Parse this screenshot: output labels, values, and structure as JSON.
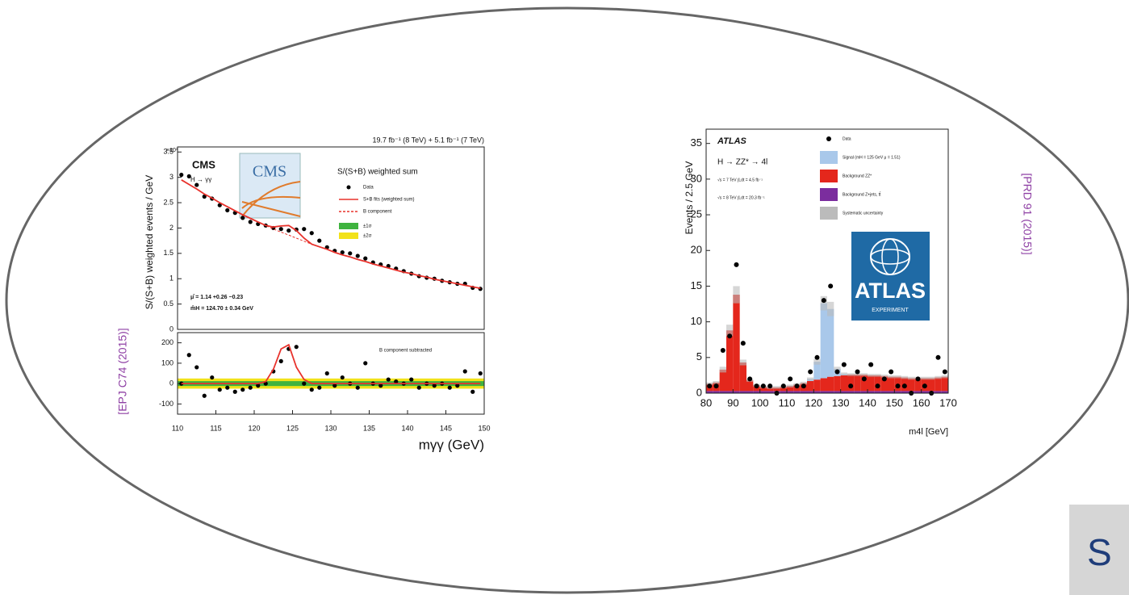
{
  "chart_data": [
    {
      "type": "line",
      "source": "[EPJ C74 (2015)]",
      "title": "19.7 fb⁻¹ (8 TeV) + 5.1 fb⁻¹ (7 TeV)",
      "experiment": "CMS",
      "process": "H → γγ",
      "logo": "CMS",
      "legend_title": "S/(S+B) weighted sum",
      "y_multiplier": "×10³",
      "ylabel": "S/(S+B) weighted events / GeV",
      "annotations": [
        "μ̂ = 1.14 +0.26 −0.23",
        "m̂H = 124.70 ± 0.34 GeV"
      ],
      "xlim": [
        110,
        150
      ],
      "ylim": [
        0,
        3.6
      ],
      "yticks": [
        0,
        0.5,
        1,
        1.5,
        2,
        2.5,
        3,
        3.5
      ],
      "x": [
        110.5,
        111.5,
        112.5,
        113.5,
        114.5,
        115.5,
        116.5,
        117.5,
        118.5,
        119.5,
        120.5,
        121.5,
        122.5,
        123.5,
        124.5,
        125.5,
        126.5,
        127.5,
        128.5,
        129.5,
        130.5,
        131.5,
        132.5,
        133.5,
        134.5,
        135.5,
        136.5,
        137.5,
        138.5,
        139.5,
        140.5,
        141.5,
        142.5,
        143.5,
        144.5,
        145.5,
        146.5,
        147.5,
        148.5,
        149.5
      ],
      "series": [
        {
          "name": "Data",
          "color": "#000000",
          "marker": "point",
          "values": [
            3.05,
            3.02,
            2.85,
            2.62,
            2.58,
            2.45,
            2.35,
            2.3,
            2.2,
            2.12,
            2.08,
            2.05,
            2.0,
            1.98,
            1.95,
            1.97,
            1.98,
            1.9,
            1.75,
            1.62,
            1.55,
            1.52,
            1.5,
            1.45,
            1.4,
            1.32,
            1.28,
            1.25,
            1.2,
            1.15,
            1.1,
            1.05,
            1.02,
            1.0,
            0.96,
            0.93,
            0.9,
            0.9,
            0.82,
            0.8
          ]
        },
        {
          "name": "S+B fits (weighted sum)",
          "color": "#e8322c",
          "marker": "line",
          "values": [
            2.95,
            2.86,
            2.77,
            2.67,
            2.59,
            2.5,
            2.42,
            2.34,
            2.26,
            2.19,
            2.12,
            2.05,
            2.02,
            2.04,
            2.05,
            1.95,
            1.8,
            1.68,
            1.63,
            1.58,
            1.52,
            1.47,
            1.43,
            1.38,
            1.34,
            1.29,
            1.25,
            1.21,
            1.17,
            1.13,
            1.1,
            1.06,
            1.03,
            0.99,
            0.96,
            0.93,
            0.9,
            0.87,
            0.84,
            0.81
          ]
        },
        {
          "name": "B component",
          "color": "#e8322c",
          "marker": "dash",
          "values": [
            2.95,
            2.86,
            2.77,
            2.67,
            2.59,
            2.5,
            2.42,
            2.34,
            2.26,
            2.19,
            2.12,
            2.05,
            1.98,
            1.92,
            1.86,
            1.8,
            1.74,
            1.68,
            1.63,
            1.58,
            1.52,
            1.47,
            1.43,
            1.38,
            1.34,
            1.29,
            1.25,
            1.21,
            1.17,
            1.13,
            1.1,
            1.06,
            1.03,
            0.99,
            0.96,
            0.93,
            0.9,
            0.87,
            0.84,
            0.81
          ]
        }
      ]
    },
    {
      "type": "line",
      "annotation": "B component subtracted",
      "xlabel": "mγγ (GeV)",
      "xlim": [
        110,
        150
      ],
      "ylim": [
        -150,
        250
      ],
      "xticks": [
        110,
        115,
        120,
        125,
        130,
        135,
        140,
        145,
        150
      ],
      "yticks": [
        -100,
        0,
        100,
        200
      ],
      "bands": [
        {
          "name": "±2σ",
          "color": "#f2e21a",
          "values": [
            -25,
            25
          ]
        },
        {
          "name": "±1σ",
          "color": "#3fb33f",
          "values": [
            -12,
            12
          ]
        }
      ],
      "x": [
        110.5,
        111.5,
        112.5,
        113.5,
        114.5,
        115.5,
        116.5,
        117.5,
        118.5,
        119.5,
        120.5,
        121.5,
        122.5,
        123.5,
        124.5,
        125.5,
        126.5,
        127.5,
        128.5,
        129.5,
        130.5,
        131.5,
        132.5,
        133.5,
        134.5,
        135.5,
        136.5,
        137.5,
        138.5,
        139.5,
        140.5,
        141.5,
        142.5,
        143.5,
        144.5,
        145.5,
        146.5,
        147.5,
        148.5,
        149.5
      ],
      "series": [
        {
          "color": "#000000",
          "marker": "point",
          "values": [
            0,
            140,
            80,
            -60,
            30,
            -30,
            -20,
            -40,
            -30,
            -20,
            -10,
            0,
            60,
            110,
            170,
            180,
            0,
            -30,
            -20,
            50,
            -10,
            30,
            0,
            -20,
            100,
            0,
            -10,
            20,
            10,
            0,
            20,
            -20,
            0,
            -10,
            0,
            -20,
            -10,
            60,
            -40,
            50
          ]
        },
        {
          "color": "#e8322c",
          "marker": "line",
          "values": [
            0,
            0,
            0,
            0,
            0,
            0,
            0,
            0,
            0,
            0,
            0,
            10,
            70,
            170,
            190,
            80,
            20,
            0,
            0,
            0,
            0,
            0,
            0,
            0,
            0,
            0,
            0,
            0,
            0,
            0,
            0,
            0,
            0,
            0,
            0,
            0,
            0,
            0,
            0,
            0
          ]
        }
      ]
    },
    {
      "type": "histogram",
      "source": "[PRD 91 (2015)]",
      "experiment": "ATLAS",
      "process": "H → ZZ* → 4l",
      "lumi": [
        "√s = 7 TeV ∫Ldt = 4.5 fb⁻¹",
        "√s = 8 TeV ∫Ldt = 20.3 fb⁻¹"
      ],
      "logo": [
        "ATLAS",
        "EXPERIMENT"
      ],
      "xlabel": "m4l [GeV]",
      "ylabel": "Events / 2.5 GeV",
      "xlim": [
        80,
        170
      ],
      "ylim": [
        0,
        37
      ],
      "xticks": [
        80,
        90,
        100,
        110,
        120,
        130,
        140,
        150,
        160,
        170
      ],
      "yticks": [
        0,
        5,
        10,
        15,
        20,
        25,
        30,
        35
      ],
      "bins": [
        80,
        82.5,
        85,
        87.5,
        90,
        92.5,
        95,
        97.5,
        100,
        102.5,
        105,
        107.5,
        110,
        112.5,
        115,
        117.5,
        120,
        122.5,
        125,
        127.5,
        130,
        132.5,
        135,
        137.5,
        140,
        142.5,
        145,
        147.5,
        150,
        152.5,
        155,
        157.5,
        160,
        162.5,
        165,
        167.5,
        170
      ],
      "series": [
        {
          "name": "Background Z+jets, tt̄",
          "color": "#7b2d9e",
          "values": [
            0.3,
            0.3,
            0.3,
            0.3,
            0.3,
            0.3,
            0.3,
            0.3,
            0.3,
            0.3,
            0.3,
            0.3,
            0.3,
            0.3,
            0.3,
            0.3,
            0.3,
            0.3,
            0.3,
            0.3,
            0.3,
            0.3,
            0.3,
            0.3,
            0.3,
            0.3,
            0.3,
            0.3,
            0.3,
            0.3,
            0.3,
            0.3,
            0.3,
            0.3,
            0.3,
            0.3
          ]
        },
        {
          "name": "Background ZZ*",
          "color": "#e4271c",
          "values": [
            1,
            1.2,
            3,
            8.5,
            13.5,
            4,
            1.5,
            0.8,
            0.6,
            0.5,
            0.5,
            0.6,
            0.7,
            0.9,
            1.1,
            1.4,
            1.6,
            1.8,
            2,
            2.1,
            2.2,
            2.3,
            2.3,
            2.3,
            2.2,
            2.2,
            2.1,
            2,
            2,
            1.9,
            1.8,
            1.8,
            1.8,
            1.8,
            1.9,
            2
          ]
        },
        {
          "name": "Signal (mH = 125 GeV μ = 1.51)",
          "color": "#a9c8ea",
          "values": [
            0,
            0,
            0,
            0,
            0,
            0,
            0,
            0,
            0,
            0,
            0,
            0,
            0,
            0,
            0,
            0.3,
            2.5,
            10.5,
            9.5,
            1,
            0.2,
            0,
            0,
            0,
            0,
            0,
            0,
            0,
            0,
            0,
            0,
            0,
            0,
            0,
            0,
            0
          ]
        }
      ],
      "uncertainty": {
        "name": "Systematic uncertainty",
        "color": "#bbbbbb",
        "values": [
          0.2,
          0.2,
          0.4,
          0.8,
          1.2,
          0.4,
          0.2,
          0.2,
          0.2,
          0.2,
          0.2,
          0.2,
          0.2,
          0.2,
          0.2,
          0.2,
          0.4,
          1,
          1,
          0.3,
          0.2,
          0.2,
          0.2,
          0.2,
          0.2,
          0.2,
          0.2,
          0.2,
          0.2,
          0.2,
          0.2,
          0.2,
          0.2,
          0.2,
          0.2,
          0.2
        ]
      },
      "data": {
        "name": "Data",
        "color": "#000000",
        "x": [
          81.25,
          83.75,
          86.25,
          88.75,
          91.25,
          93.75,
          96.25,
          98.75,
          101.25,
          103.75,
          106.25,
          108.75,
          111.25,
          113.75,
          116.25,
          118.75,
          121.25,
          123.75,
          126.25,
          128.75,
          131.25,
          133.75,
          136.25,
          138.75,
          141.25,
          143.75,
          146.25,
          148.75,
          151.25,
          153.75,
          156.25,
          158.75,
          161.25,
          163.75,
          166.25,
          168.75
        ],
        "values": [
          1,
          1,
          6,
          8,
          18,
          7,
          2,
          1,
          1,
          1,
          0,
          1,
          2,
          1,
          1,
          3,
          5,
          13,
          15,
          3,
          4,
          1,
          3,
          2,
          4,
          1,
          2,
          3,
          1,
          1,
          0,
          2,
          1,
          0,
          5,
          3
        ]
      }
    }
  ],
  "footer_fragment": "S"
}
